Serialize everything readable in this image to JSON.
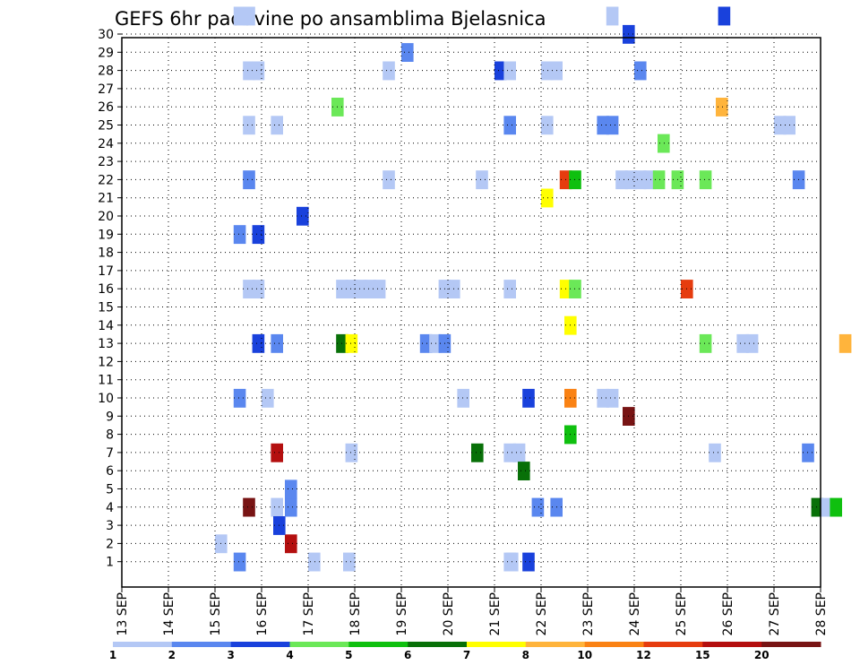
{
  "chart_data": {
    "type": "heatmap",
    "title": "GEFS 6hr padavine po ansamblima Bjelasnica",
    "xlabel": "",
    "ylabel": "",
    "x_ticks": [
      "13 SEP",
      "14 SEP",
      "15 SEP",
      "16 SEP",
      "17 SEP",
      "18 SEP",
      "19 SEP",
      "20 SEP",
      "21 SEP",
      "22 SEP",
      "23 SEP",
      "24 SEP",
      "25 SEP",
      "26 SEP",
      "27 SEP",
      "28 SEP"
    ],
    "y_ticks": [
      "1",
      "2",
      "3",
      "4",
      "5",
      "6",
      "7",
      "8",
      "9",
      "10",
      "11",
      "12",
      "13",
      "14",
      "15",
      "16",
      "17",
      "18",
      "19",
      "20",
      "21",
      "22",
      "23",
      "24",
      "25",
      "26",
      "27",
      "28",
      "29",
      "30"
    ],
    "xlim": [
      "13 SEP 00",
      "28 SEP 00"
    ],
    "ylim": [
      0,
      30
    ],
    "grid": true,
    "colorbar": {
      "placement": "bottom",
      "levels": [
        "1",
        "2",
        "3",
        "4",
        "5",
        "6",
        "7",
        "8",
        "10",
        "12",
        "15",
        "20"
      ],
      "colors": [
        "#b4c8f5",
        "#5a87ef",
        "#1941dc",
        "#6be858",
        "#0fc00f",
        "#087008",
        "#ffff00",
        "#ffb43c",
        "#fa8214",
        "#e63c0f",
        "#b40f0f",
        "#781414"
      ]
    },
    "member_color_class": [
      [
        [
          15.4,
          2
        ],
        [
          17.0,
          1
        ],
        [
          21.2,
          1
        ],
        [
          21.6,
          3
        ]
      ],
      [
        [
          15.6,
          12
        ],
        [
          16.2,
          1
        ],
        [
          21.8,
          2
        ],
        [
          22.2,
          2
        ],
        [
          27.8,
          6
        ],
        [
          28.0,
          1
        ],
        [
          28.2,
          5
        ]
      ],
      [
        [
          16.2,
          11
        ],
        [
          17.8,
          1
        ],
        [
          21.2,
          1
        ],
        [
          21.4,
          1
        ],
        [
          25.6,
          1
        ],
        [
          27.6,
          2
        ]
      ],
      [
        [
          15.4,
          2
        ],
        [
          16.0,
          1
        ],
        [
          20.2,
          1
        ],
        [
          21.6,
          3
        ],
        [
          23.2,
          1
        ],
        [
          23.4,
          1
        ]
      ],
      [
        [
          15.8,
          3
        ],
        [
          16.2,
          2
        ],
        [
          17.6,
          6
        ],
        [
          17.8,
          7
        ],
        [
          19.4,
          2
        ],
        [
          19.6,
          1
        ],
        [
          19.8,
          2
        ],
        [
          25.4,
          4
        ],
        [
          26.2,
          1
        ],
        [
          26.4,
          1
        ],
        [
          28.4,
          8
        ]
      ],
      [
        [
          15.6,
          1
        ],
        [
          15.8,
          1
        ],
        [
          17.6,
          1
        ],
        [
          17.8,
          1
        ],
        [
          18.0,
          1
        ],
        [
          18.2,
          1
        ],
        [
          18.4,
          1
        ],
        [
          19.8,
          1
        ],
        [
          20.0,
          1
        ],
        [
          21.2,
          1
        ],
        [
          22.4,
          7
        ],
        [
          22.6,
          4
        ]
      ],
      [
        [
          15.4,
          2
        ],
        [
          15.8,
          3
        ]
      ],
      [
        [
          15.6,
          2
        ],
        [
          18.6,
          1
        ],
        [
          20.6,
          1
        ],
        [
          22.4,
          10
        ],
        [
          22.6,
          5
        ],
        [
          23.6,
          1
        ],
        [
          23.8,
          1
        ],
        [
          24.0,
          1
        ],
        [
          24.2,
          1
        ],
        [
          24.4,
          4
        ],
        [
          24.8,
          4
        ],
        [
          25.4,
          4
        ],
        [
          27.4,
          2
        ]
      ],
      [
        [
          15.6,
          1
        ],
        [
          16.2,
          1
        ],
        [
          21.2,
          2
        ],
        [
          22.0,
          1
        ],
        [
          23.2,
          2
        ],
        [
          23.4,
          2
        ],
        [
          27.0,
          1
        ],
        [
          27.2,
          1
        ]
      ],
      [
        [
          15.6,
          1
        ],
        [
          15.8,
          1
        ],
        [
          18.6,
          1
        ],
        [
          21.0,
          3
        ],
        [
          21.2,
          1
        ],
        [
          22.0,
          1
        ],
        [
          22.2,
          1
        ],
        [
          24.0,
          2
        ]
      ],
      [
        [
          15.4,
          1
        ],
        [
          15.6,
          1
        ],
        [
          23.4,
          1
        ],
        [
          25.8,
          3
        ]
      ]
    ],
    "cells_by_member_date_value": [
      {
        "member": 1,
        "date": "17 SEP 18",
        "value": 1
      },
      {
        "member": 1,
        "date": "21 SEP 06",
        "value": 1
      },
      {
        "member": 2,
        "date": "15 SEP 00",
        "value": 1
      },
      {
        "member": 2,
        "date": "16 SEP 12",
        "value": 15
      },
      {
        "member": 3,
        "date": "16 SEP 06",
        "value": 3
      },
      {
        "member": 4,
        "date": "16 SEP 12",
        "value": 2
      },
      {
        "member": 5,
        "date": "16 SEP 12",
        "value": 2
      },
      {
        "member": 6,
        "date": "21 SEP 12",
        "value": 6
      },
      {
        "member": 7,
        "date": "20 SEP 12",
        "value": 6
      },
      {
        "member": 8,
        "date": "22 SEP 12",
        "value": 5
      },
      {
        "member": 9,
        "date": "23 SEP 18",
        "value": 20
      },
      {
        "member": 10,
        "date": "22 SEP 12",
        "value": 10
      },
      {
        "member": 14,
        "date": "22 SEP 12",
        "value": 7
      },
      {
        "member": 16,
        "date": "25 SEP 00",
        "value": 12
      },
      {
        "member": 20,
        "date": "16 SEP 18",
        "value": 3
      },
      {
        "member": 21,
        "date": "22 SEP 00",
        "value": 7
      },
      {
        "member": 24,
        "date": "24 SEP 12",
        "value": 4
      },
      {
        "member": 26,
        "date": "17 SEP 12",
        "value": 4
      },
      {
        "member": 26,
        "date": "25 SEP 18",
        "value": 8
      },
      {
        "member": 29,
        "date": "19 SEP 00",
        "value": 2
      },
      {
        "member": 30,
        "date": "23 SEP 18",
        "value": 3
      }
    ]
  }
}
